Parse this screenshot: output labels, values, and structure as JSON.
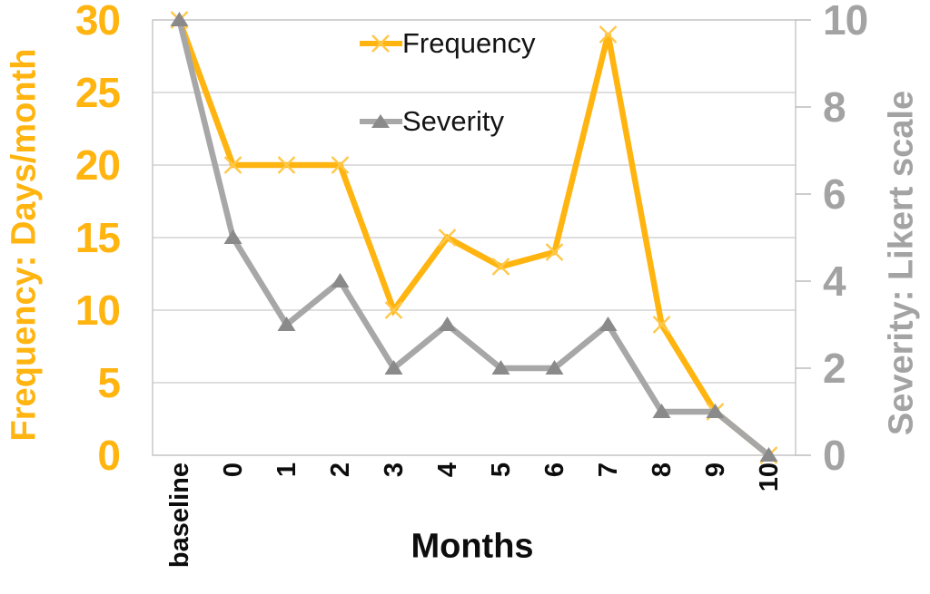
{
  "chart_data": {
    "type": "line",
    "categories": [
      "baseline",
      "0",
      "1",
      "2",
      "3",
      "4",
      "5",
      "6",
      "7",
      "8",
      "9",
      "10"
    ],
    "series": [
      {
        "name": "Frequency",
        "axis": "left",
        "color": "#FFB40F",
        "marker": "x",
        "marker_color": "#FFC84A",
        "values": [
          30,
          20,
          20,
          20,
          10,
          15,
          13,
          14,
          29,
          9,
          3,
          0
        ]
      },
      {
        "name": "Severity",
        "axis": "right",
        "color": "#A7A7A7",
        "marker": "triangle",
        "marker_color": "#8A8A8A",
        "values": [
          10,
          5,
          3,
          4,
          2,
          3,
          2,
          2,
          3,
          1,
          1,
          0
        ]
      }
    ],
    "title": "",
    "xlabel": "Months",
    "ylabel_left": "Frequency: Days/month",
    "ylabel_right": "Severity: Likert scale",
    "left_axis": {
      "min": 0,
      "max": 30,
      "ticks": [
        0,
        5,
        10,
        15,
        20,
        25,
        30
      ],
      "color": "#FFB40F"
    },
    "right_axis": {
      "min": 0,
      "max": 10,
      "ticks": [
        0,
        2,
        4,
        6,
        8,
        10
      ],
      "color": "#A3A3A3"
    },
    "grid": true,
    "grid_color": "#C9C9C9",
    "border_color": "#C0C0C0",
    "legend_position": "top-center-inside"
  }
}
